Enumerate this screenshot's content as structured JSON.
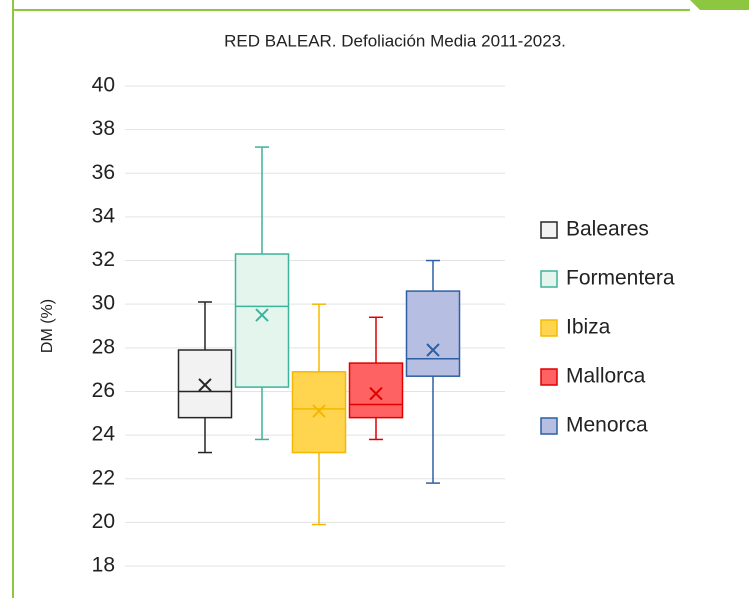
{
  "chart_data": {
    "type": "box",
    "title": "RED BALEAR. Defoliación Media 2011-2023.",
    "y_label": "DM (%)",
    "ylim": [
      18,
      40
    ],
    "yticks": [
      18,
      20,
      22,
      24,
      26,
      28,
      30,
      32,
      34,
      36,
      38,
      40
    ],
    "grid": true,
    "legend": "right",
    "series": [
      {
        "name": "Baleares",
        "color": "#262626",
        "fill": "#f2f2f2",
        "min": 23.2,
        "q1": 24.8,
        "median": 26.0,
        "q3": 27.9,
        "max": 30.1,
        "mean": 26.3
      },
      {
        "name": "Formentera",
        "color": "#3cb39a",
        "fill": "#e4f5ee",
        "min": 23.8,
        "q1": 26.2,
        "median": 29.9,
        "q3": 32.3,
        "max": 37.2,
        "mean": 29.5
      },
      {
        "name": "Ibiza",
        "color": "#f5b800",
        "fill": "#ffd54f",
        "min": 19.9,
        "q1": 23.2,
        "median": 25.2,
        "q3": 26.9,
        "max": 30.0,
        "mean": 25.1
      },
      {
        "name": "Mallorca",
        "color": "#e00000",
        "fill": "#ff6262",
        "min": 23.8,
        "q1": 24.8,
        "median": 25.4,
        "q3": 27.3,
        "max": 29.4,
        "mean": 25.9
      },
      {
        "name": "Menorca",
        "color": "#2e5fa3",
        "fill": "#b6bfe2",
        "min": 21.8,
        "q1": 26.7,
        "median": 27.5,
        "q3": 30.6,
        "max": 32.0,
        "mean": 27.9
      }
    ]
  }
}
